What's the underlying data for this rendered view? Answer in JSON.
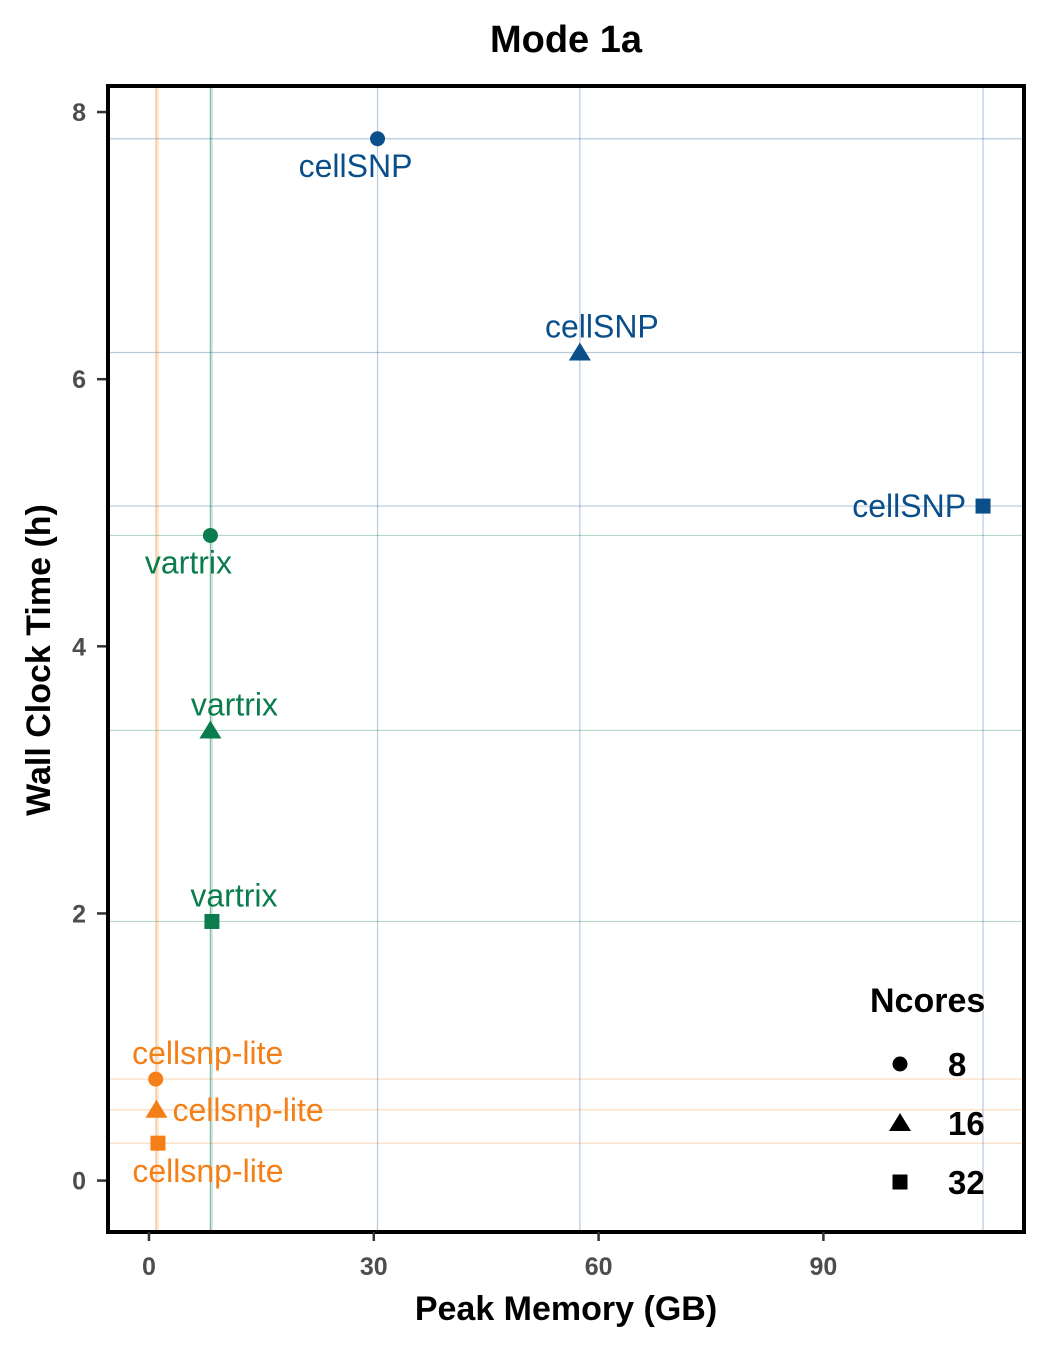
{
  "chart_data": {
    "type": "scatter",
    "title": "Mode 1a",
    "xlabel": "Peak Memory (GB)",
    "ylabel": "Wall Clock Time (h)",
    "xlim": [
      -5.2,
      116.5
    ],
    "ylim": [
      -0.37,
      8.18
    ],
    "xticks": [
      0,
      30,
      60,
      90
    ],
    "yticks": [
      0,
      2,
      4,
      6,
      8
    ],
    "grid": false,
    "legend": {
      "title": "Ncores",
      "position": "bottom-right",
      "entries": [
        {
          "label": "8",
          "shape": "circle"
        },
        {
          "label": "16",
          "shape": "triangle"
        },
        {
          "label": "32",
          "shape": "square"
        }
      ]
    },
    "colors": {
      "cellSNP": "#0b4f8a",
      "vartrix": "#0a7c4e",
      "cellsnp-lite": "#f57f17"
    },
    "series": [
      {
        "name": "cellSNP",
        "points": [
          {
            "x": 30.5,
            "y": 7.8,
            "ncores": "8"
          },
          {
            "x": 57.5,
            "y": 6.2,
            "ncores": "16"
          },
          {
            "x": 111.3,
            "y": 5.05,
            "ncores": "32"
          }
        ]
      },
      {
        "name": "vartrix",
        "points": [
          {
            "x": 8.2,
            "y": 4.83,
            "ncores": "8"
          },
          {
            "x": 8.2,
            "y": 3.37,
            "ncores": "16"
          },
          {
            "x": 8.4,
            "y": 1.94,
            "ncores": "32"
          }
        ]
      },
      {
        "name": "cellsnp-lite",
        "points": [
          {
            "x": 0.9,
            "y": 0.76,
            "ncores": "8"
          },
          {
            "x": 1.0,
            "y": 0.53,
            "ncores": "16"
          },
          {
            "x": 1.2,
            "y": 0.28,
            "ncores": "32"
          }
        ]
      }
    ]
  }
}
